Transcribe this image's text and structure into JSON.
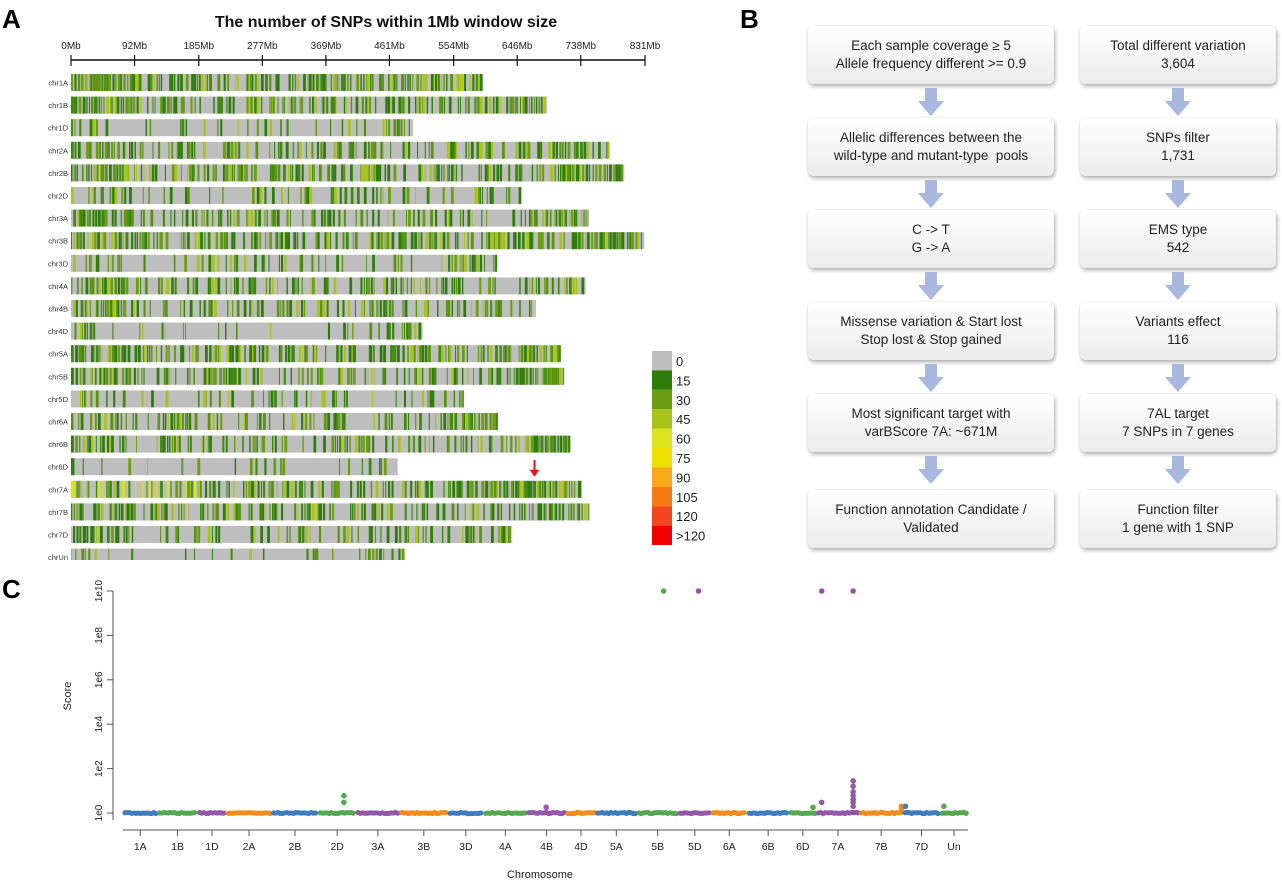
{
  "panels": {
    "a": "A",
    "b": "B",
    "c": "C"
  },
  "heatmap": {
    "title": "The number of SNPs within 1Mb window size",
    "tick_labels": [
      "0Mb",
      "92Mb",
      "185Mb",
      "277Mb",
      "369Mb",
      "461Mb",
      "554Mb",
      "646Mb",
      "738Mb",
      "831Mb"
    ],
    "tick_values_mb": [
      0,
      92,
      185,
      277,
      369,
      461,
      554,
      646,
      738,
      831
    ],
    "chromosomes": [
      {
        "name": "chr1A",
        "length_mb": 594,
        "density": 0.7
      },
      {
        "name": "chr1B",
        "length_mb": 689,
        "density": 0.65
      },
      {
        "name": "chr1D",
        "length_mb": 495,
        "density": 0.22
      },
      {
        "name": "chr2A",
        "length_mb": 780,
        "density": 0.55
      },
      {
        "name": "chr2B",
        "length_mb": 801,
        "density": 0.62
      },
      {
        "name": "chr2D",
        "length_mb": 651,
        "density": 0.3
      },
      {
        "name": "chr3A",
        "length_mb": 750,
        "density": 0.45
      },
      {
        "name": "chr3B",
        "length_mb": 830,
        "density": 0.6
      },
      {
        "name": "chr3D",
        "length_mb": 615,
        "density": 0.25
      },
      {
        "name": "chr4A",
        "length_mb": 745,
        "density": 0.4
      },
      {
        "name": "chr4B",
        "length_mb": 673,
        "density": 0.45
      },
      {
        "name": "chr4D",
        "length_mb": 509,
        "density": 0.15
      },
      {
        "name": "chr5A",
        "length_mb": 709,
        "density": 0.55
      },
      {
        "name": "chr5B",
        "length_mb": 713,
        "density": 0.55
      },
      {
        "name": "chr5D",
        "length_mb": 566,
        "density": 0.25
      },
      {
        "name": "chr6A",
        "length_mb": 618,
        "density": 0.45
      },
      {
        "name": "chr6B",
        "length_mb": 720,
        "density": 0.5
      },
      {
        "name": "chr6D",
        "length_mb": 473,
        "density": 0.2
      },
      {
        "name": "chr7A",
        "length_mb": 736,
        "density": 0.6
      },
      {
        "name": "chr7B",
        "length_mb": 750,
        "density": 0.55
      },
      {
        "name": "chr7D",
        "length_mb": 638,
        "density": 0.3
      },
      {
        "name": "chrUn",
        "length_mb": 481,
        "density": 0.15
      }
    ],
    "highlight": {
      "chromosome": "chr7A",
      "position_mb": 671
    },
    "legend": [
      {
        "label": "0",
        "color": "#bebebe"
      },
      {
        "label": "15",
        "color": "#2e7d0a"
      },
      {
        "label": "30",
        "color": "#6b9e10"
      },
      {
        "label": "45",
        "color": "#a8c41a"
      },
      {
        "label": "60",
        "color": "#dce21e"
      },
      {
        "label": "75",
        "color": "#f0e000"
      },
      {
        "label": "90",
        "color": "#fba81a"
      },
      {
        "label": "105",
        "color": "#f77a12"
      },
      {
        "label": "120",
        "color": "#f2441d"
      },
      {
        "label": ">120",
        "color": "#f00000"
      }
    ]
  },
  "flowchart": {
    "left": [
      {
        "lines": [
          "Each sample coverage ≥ 5",
          "Allele frequency different >= 0.9"
        ]
      },
      {
        "lines": [
          "Allelic differences between the",
          "wild-type and mutant-type  pools"
        ]
      },
      {
        "lines": [
          "C -> T",
          "G -> A"
        ]
      },
      {
        "lines": [
          "Missense variation & Start lost",
          "Stop lost & Stop gained"
        ]
      },
      {
        "lines": [
          "Most significant target with",
          "varBScore 7A: ~671M"
        ]
      },
      {
        "lines": [
          "Function annotation Candidate /",
          "Validated"
        ]
      }
    ],
    "right": [
      {
        "lines": [
          "Total different variation",
          "3,604"
        ]
      },
      {
        "lines": [
          "SNPs filter",
          "1,731"
        ]
      },
      {
        "lines": [
          "EMS type",
          "542"
        ]
      },
      {
        "lines": [
          "Variants effect",
          "116"
        ]
      },
      {
        "lines": [
          "7AL target",
          "7 SNPs in 7 genes"
        ]
      },
      {
        "lines": [
          "Function filter",
          "1 gene with 1 SNP"
        ]
      }
    ],
    "arrow_color": "#a9b8de"
  },
  "chart_data": {
    "type": "scatter",
    "title": "",
    "xlabel": "Chromosome",
    "ylabel": "Score",
    "y_scale": "log10",
    "ylim": [
      1,
      10000000000
    ],
    "y_tick_labels": [
      "1e0",
      "1e2",
      "1e4",
      "1e6",
      "1e8",
      "1e10"
    ],
    "y_tick_values": [
      1,
      100,
      10000,
      1000000,
      100000000,
      10000000000
    ],
    "x_tick_labels": [
      "1A",
      "1B",
      "1D",
      "2A",
      "2B",
      "2D",
      "3A",
      "3B",
      "3D",
      "4A",
      "4B",
      "4D",
      "5A",
      "5B",
      "5D",
      "6A",
      "6B",
      "6D",
      "7A",
      "7B",
      "7D",
      "Un"
    ],
    "series": [
      {
        "chromosome": "1A",
        "start_mb": 0,
        "length_mb": 594,
        "color": "#3f7cbf"
      },
      {
        "chromosome": "1B",
        "start_mb": 594,
        "length_mb": 689,
        "color": "#55a852"
      },
      {
        "chromosome": "1D",
        "start_mb": 1283,
        "length_mb": 495,
        "color": "#9457a8"
      },
      {
        "chromosome": "2A",
        "start_mb": 1778,
        "length_mb": 780,
        "color": "#f28d1d"
      },
      {
        "chromosome": "2B",
        "start_mb": 2558,
        "length_mb": 801,
        "color": "#3f7cbf"
      },
      {
        "chromosome": "2D",
        "start_mb": 3359,
        "length_mb": 651,
        "color": "#55a852"
      },
      {
        "chromosome": "3A",
        "start_mb": 4010,
        "length_mb": 750,
        "color": "#9457a8"
      },
      {
        "chromosome": "3B",
        "start_mb": 4760,
        "length_mb": 830,
        "color": "#f28d1d"
      },
      {
        "chromosome": "3D",
        "start_mb": 5590,
        "length_mb": 615,
        "color": "#3f7cbf"
      },
      {
        "chromosome": "4A",
        "start_mb": 6205,
        "length_mb": 745,
        "color": "#55a852"
      },
      {
        "chromosome": "4B",
        "start_mb": 6950,
        "length_mb": 673,
        "color": "#9457a8"
      },
      {
        "chromosome": "4D",
        "start_mb": 7623,
        "length_mb": 509,
        "color": "#f28d1d"
      },
      {
        "chromosome": "5A",
        "start_mb": 8132,
        "length_mb": 709,
        "color": "#3f7cbf"
      },
      {
        "chromosome": "5B",
        "start_mb": 8841,
        "length_mb": 713,
        "color": "#55a852"
      },
      {
        "chromosome": "5D",
        "start_mb": 9554,
        "length_mb": 566,
        "color": "#9457a8"
      },
      {
        "chromosome": "6A",
        "start_mb": 10120,
        "length_mb": 618,
        "color": "#f28d1d"
      },
      {
        "chromosome": "6B",
        "start_mb": 10738,
        "length_mb": 720,
        "color": "#3f7cbf"
      },
      {
        "chromosome": "6D",
        "start_mb": 11458,
        "length_mb": 473,
        "color": "#55a852"
      },
      {
        "chromosome": "7A",
        "start_mb": 11931,
        "length_mb": 736,
        "color": "#9457a8"
      },
      {
        "chromosome": "7B",
        "start_mb": 12667,
        "length_mb": 750,
        "color": "#f28d1d"
      },
      {
        "chromosome": "7D",
        "start_mb": 13417,
        "length_mb": 638,
        "color": "#3f7cbf"
      },
      {
        "chromosome": "Un",
        "start_mb": 14055,
        "length_mb": 481,
        "color": "#55a852"
      }
    ],
    "x_total_mb": 14536,
    "high_points": [
      {
        "chromosome": "2D",
        "position_mb": 3800,
        "score": 3
      },
      {
        "chromosome": "2D",
        "position_mb": 3800,
        "score": 6
      },
      {
        "chromosome": "4B",
        "position_mb": 7280,
        "score": 1.8
      },
      {
        "chromosome": "5B",
        "position_mb": 9300,
        "score": 10000000000
      },
      {
        "chromosome": "5D",
        "position_mb": 9900,
        "score": 10000000000
      },
      {
        "chromosome": "6D",
        "position_mb": 11870,
        "score": 1.8
      },
      {
        "chromosome": "7A",
        "position_mb": 12020,
        "score": 3
      },
      {
        "chromosome": "7A",
        "position_mb": 12020,
        "score": 10000000000
      },
      {
        "chromosome": "7A",
        "position_mb": 12560,
        "score": 2
      },
      {
        "chromosome": "7A",
        "position_mb": 12560,
        "score": 3
      },
      {
        "chromosome": "7A",
        "position_mb": 12560,
        "score": 4
      },
      {
        "chromosome": "7A",
        "position_mb": 12560,
        "score": 6
      },
      {
        "chromosome": "7A",
        "position_mb": 12560,
        "score": 9
      },
      {
        "chromosome": "7A",
        "position_mb": 12560,
        "score": 16
      },
      {
        "chromosome": "7A",
        "position_mb": 12560,
        "score": 28
      },
      {
        "chromosome": "7A",
        "position_mb": 12560,
        "score": 10000000000
      },
      {
        "chromosome": "7B",
        "position_mb": 13390,
        "score": 1.6
      },
      {
        "chromosome": "7B",
        "position_mb": 13390,
        "score": 2
      },
      {
        "chromosome": "7D",
        "position_mb": 13460,
        "score": 2
      },
      {
        "chromosome": "Un",
        "position_mb": 14120,
        "score": 2
      }
    ]
  }
}
